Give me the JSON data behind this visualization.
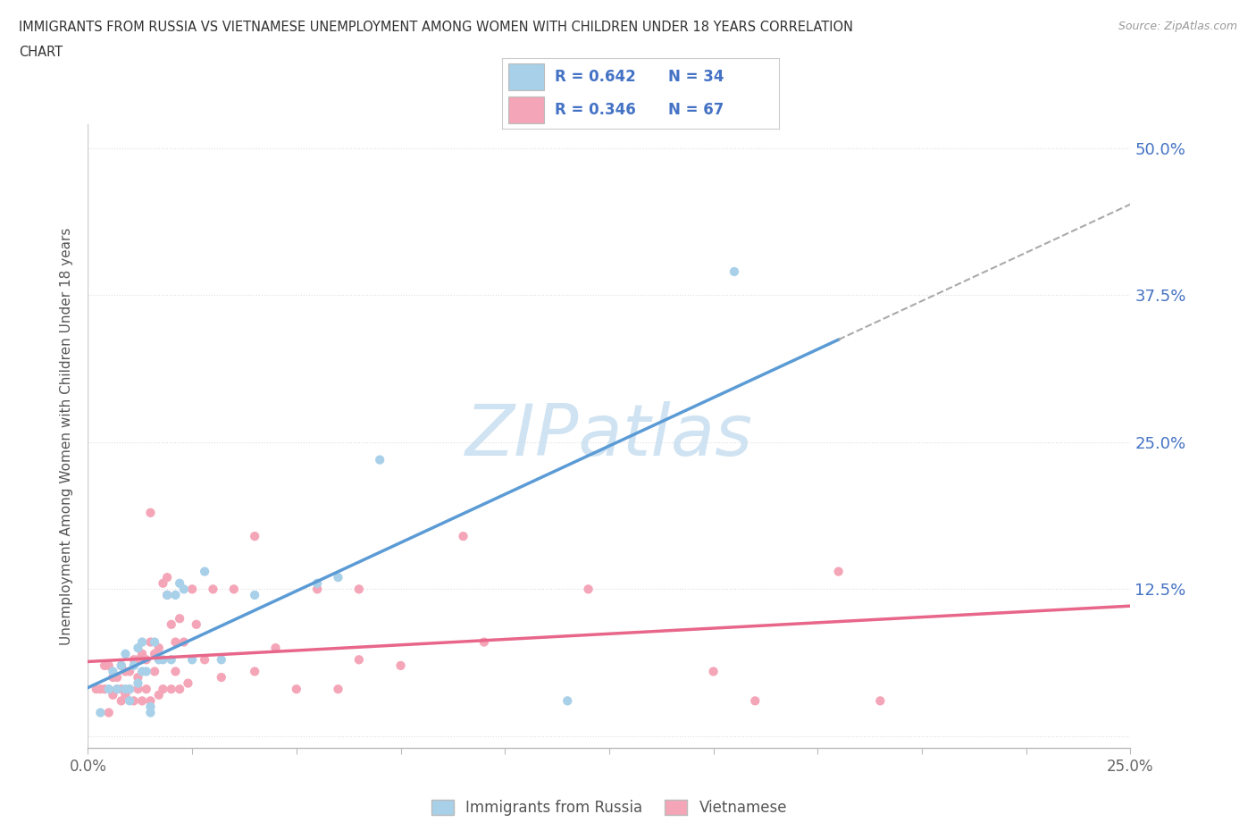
{
  "title_line1": "IMMIGRANTS FROM RUSSIA VS VIETNAMESE UNEMPLOYMENT AMONG WOMEN WITH CHILDREN UNDER 18 YEARS CORRELATION",
  "title_line2": "CHART",
  "source": "Source: ZipAtlas.com",
  "ylabel": "Unemployment Among Women with Children Under 18 years",
  "russia_R": 0.642,
  "russia_N": 34,
  "vietnamese_R": 0.346,
  "vietnamese_N": 67,
  "russia_color": "#A8D0E8",
  "vietnamese_color": "#F4A6B8",
  "russia_line_color": "#5B9BD5",
  "vietnamese_line_color": "#E8668A",
  "label_color": "#4472C4",
  "watermark_color": "#C8DFF0",
  "xlim": [
    0.0,
    0.25
  ],
  "ylim": [
    -0.01,
    0.52
  ],
  "yticks": [
    0.0,
    0.125,
    0.25,
    0.375,
    0.5
  ],
  "ytick_labels": [
    "",
    "12.5%",
    "25.0%",
    "37.5%",
    "50.0%"
  ],
  "xtick_labels": [
    "0.0%",
    "",
    "",
    "",
    "",
    "",
    "",
    "",
    "",
    "",
    "25.0%"
  ],
  "russia_scatter_x": [
    0.003,
    0.005,
    0.006,
    0.007,
    0.008,
    0.009,
    0.009,
    0.01,
    0.01,
    0.011,
    0.012,
    0.012,
    0.013,
    0.013,
    0.014,
    0.015,
    0.015,
    0.016,
    0.017,
    0.018,
    0.019,
    0.02,
    0.021,
    0.022,
    0.023,
    0.025,
    0.028,
    0.032,
    0.04,
    0.055,
    0.06,
    0.07,
    0.115,
    0.155
  ],
  "russia_scatter_y": [
    0.02,
    0.04,
    0.055,
    0.04,
    0.06,
    0.04,
    0.07,
    0.03,
    0.04,
    0.06,
    0.045,
    0.075,
    0.055,
    0.08,
    0.055,
    0.02,
    0.025,
    0.08,
    0.065,
    0.065,
    0.12,
    0.065,
    0.12,
    0.13,
    0.125,
    0.065,
    0.14,
    0.065,
    0.12,
    0.13,
    0.135,
    0.235,
    0.03,
    0.395
  ],
  "vietnamese_scatter_x": [
    0.002,
    0.003,
    0.004,
    0.004,
    0.005,
    0.005,
    0.006,
    0.006,
    0.007,
    0.007,
    0.008,
    0.008,
    0.008,
    0.009,
    0.009,
    0.01,
    0.01,
    0.011,
    0.011,
    0.012,
    0.012,
    0.012,
    0.013,
    0.013,
    0.014,
    0.014,
    0.015,
    0.015,
    0.015,
    0.016,
    0.016,
    0.017,
    0.017,
    0.018,
    0.018,
    0.019,
    0.019,
    0.02,
    0.02,
    0.021,
    0.021,
    0.022,
    0.022,
    0.023,
    0.024,
    0.025,
    0.026,
    0.028,
    0.03,
    0.032,
    0.035,
    0.04,
    0.04,
    0.045,
    0.05,
    0.055,
    0.06,
    0.065,
    0.065,
    0.075,
    0.09,
    0.095,
    0.12,
    0.15,
    0.16,
    0.18,
    0.19
  ],
  "vietnamese_scatter_y": [
    0.04,
    0.04,
    0.04,
    0.06,
    0.02,
    0.06,
    0.035,
    0.05,
    0.04,
    0.05,
    0.03,
    0.04,
    0.06,
    0.035,
    0.055,
    0.04,
    0.055,
    0.03,
    0.065,
    0.04,
    0.05,
    0.065,
    0.03,
    0.07,
    0.04,
    0.065,
    0.03,
    0.08,
    0.19,
    0.055,
    0.07,
    0.035,
    0.075,
    0.04,
    0.13,
    0.12,
    0.135,
    0.04,
    0.095,
    0.055,
    0.08,
    0.04,
    0.1,
    0.08,
    0.045,
    0.125,
    0.095,
    0.065,
    0.125,
    0.05,
    0.125,
    0.055,
    0.17,
    0.075,
    0.04,
    0.125,
    0.04,
    0.065,
    0.125,
    0.06,
    0.17,
    0.08,
    0.125,
    0.055,
    0.03,
    0.14,
    0.03
  ],
  "background_color": "#FFFFFF",
  "grid_color": "#DDDDDD"
}
